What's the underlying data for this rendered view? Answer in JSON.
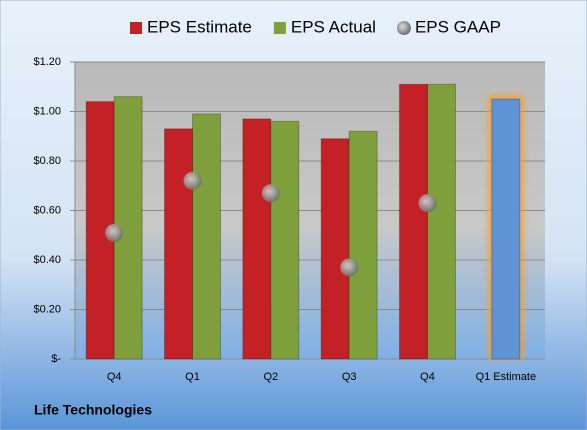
{
  "chart_data": {
    "type": "bar",
    "footer": "Life Technologies",
    "categories": [
      "Q4",
      "Q1",
      "Q2",
      "Q3",
      "Q4",
      "Q1 Estimate"
    ],
    "series": [
      {
        "name": "EPS Estimate",
        "color": "#c42126",
        "colors": [
          "#c42126",
          "#c42126",
          "#c42126",
          "#c42126",
          "#c42126",
          "#5f93d6"
        ],
        "values": [
          1.04,
          0.93,
          0.97,
          0.89,
          1.11,
          1.05
        ]
      },
      {
        "name": "EPS Actual",
        "color": "#7f9f3c",
        "values": [
          1.06,
          0.99,
          0.96,
          0.92,
          1.11,
          null
        ]
      },
      {
        "name": "EPS GAAP",
        "color": "#9a9a9a",
        "marker": "circle",
        "values": [
          0.51,
          0.72,
          0.67,
          0.37,
          0.63,
          null
        ]
      }
    ],
    "ylim": [
      0,
      1.2
    ],
    "yticks": [
      {
        "value": 0,
        "label": "$-"
      },
      {
        "value": 0.2,
        "label": "$0.20"
      },
      {
        "value": 0.4,
        "label": "$0.40"
      },
      {
        "value": 0.6,
        "label": "$0.60"
      },
      {
        "value": 0.8,
        "label": "$0.80"
      },
      {
        "value": 1.0,
        "label": "$1.00"
      },
      {
        "value": 1.2,
        "label": "$1.20"
      }
    ],
    "grid": true,
    "legend": "top"
  }
}
